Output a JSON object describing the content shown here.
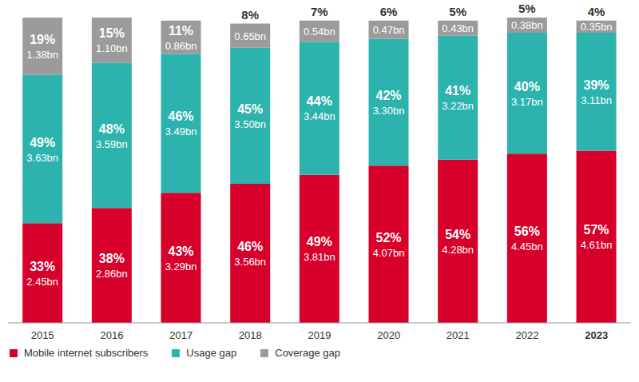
{
  "chart_data": {
    "type": "bar",
    "stacked": true,
    "data_labels": true,
    "tick_labels": "x",
    "legend": "bottom left",
    "categories": [
      "2015",
      "2016",
      "2017",
      "2018",
      "2019",
      "2020",
      "2021",
      "2022",
      "2023"
    ],
    "ylim": [
      0,
      101
    ],
    "series": [
      {
        "name": "Mobile internet subscribers",
        "color": "#d7002a",
        "values": [
          33,
          38,
          43,
          46,
          49,
          52,
          54,
          56,
          57
        ],
        "value_labels": [
          "33%",
          "38%",
          "43%",
          "46%",
          "49%",
          "52%",
          "54%",
          "56%",
          "57%"
        ],
        "amounts": [
          2.45,
          2.86,
          3.29,
          3.56,
          3.81,
          4.07,
          4.28,
          4.45,
          4.61
        ],
        "amount_labels": [
          "2.45bn",
          "2.86bn",
          "3.29bn",
          "3.56bn",
          "3.81bn",
          "4.07bn",
          "4.28bn",
          "4.45bn",
          "4.61bn"
        ]
      },
      {
        "name": "Usage gap",
        "color": "#2db3ae",
        "values": [
          49,
          48,
          46,
          45,
          44,
          42,
          41,
          40,
          39
        ],
        "value_labels": [
          "49%",
          "48%",
          "46%",
          "45%",
          "44%",
          "42%",
          "41%",
          "40%",
          "39%"
        ],
        "amounts": [
          3.63,
          3.59,
          3.49,
          3.5,
          3.44,
          3.3,
          3.22,
          3.17,
          3.11
        ],
        "amount_labels": [
          "3.63bn",
          "3.59bn",
          "3.49bn",
          "3.50bn",
          "3.44bn",
          "3.30bn",
          "3.22bn",
          "3.17bn",
          "3.11bn"
        ]
      },
      {
        "name": "Coverage gap",
        "color": "#9b9b9b",
        "values": [
          19,
          15,
          11,
          8,
          7,
          6,
          5,
          5,
          4
        ],
        "value_labels": [
          "19%",
          "15%",
          "11%",
          "8%",
          "7%",
          "6%",
          "5%",
          "5%",
          "4%"
        ],
        "amounts": [
          1.38,
          1.1,
          0.86,
          0.65,
          0.54,
          0.47,
          0.43,
          0.38,
          0.35
        ],
        "amount_labels": [
          "1.38bn",
          "1.10bn",
          "0.86bn",
          "0.65bn",
          "0.54bn",
          "0.47bn",
          "0.43bn",
          "0.38bn",
          "0.35bn"
        ]
      }
    ]
  }
}
